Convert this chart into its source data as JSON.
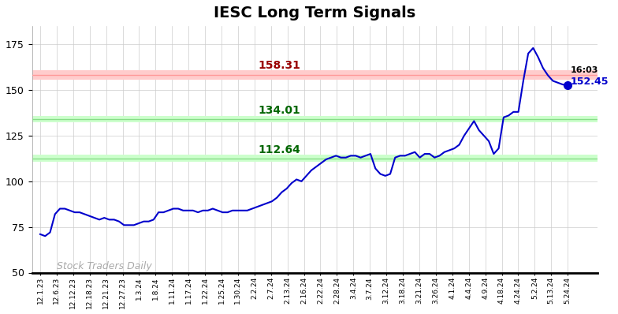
{
  "title": "IESC Long Term Signals",
  "title_fontsize": 14,
  "line_color": "#0000CC",
  "line_width": 1.5,
  "background_color": "#ffffff",
  "grid_color": "#cccccc",
  "hline_red": 158.31,
  "hline_red_fill_color": "#ffcccc",
  "hline_red_line_color": "#ff9999",
  "hline_green1": 134.01,
  "hline_green2": 112.64,
  "hline_green_fill_color": "#ccffcc",
  "hline_green_line_color": "#88dd88",
  "label_red_value": "158.31",
  "label_red_color": "#990000",
  "label_green1_value": "134.01",
  "label_green2_value": "112.64",
  "label_green_color": "#006600",
  "watermark": "Stock Traders Daily",
  "watermark_color": "#aaaaaa",
  "end_label_time": "16:03",
  "end_label_price": "152.45",
  "end_dot_color": "#0000CC",
  "ylim_min": 50,
  "ylim_max": 185,
  "yticks": [
    50,
    75,
    100,
    125,
    150,
    175
  ],
  "x_labels": [
    "12.1.23",
    "12.6.23",
    "12.12.23",
    "12.18.23",
    "12.21.23",
    "12.27.23",
    "1.3.24",
    "1.8.24",
    "1.11.24",
    "1.17.24",
    "1.22.24",
    "1.25.24",
    "1.30.24",
    "2.2.24",
    "2.7.24",
    "2.13.24",
    "2.16.24",
    "2.22.24",
    "2.28.24",
    "3.4.24",
    "3.7.24",
    "3.12.24",
    "3.18.24",
    "3.21.24",
    "3.26.24",
    "4.1.24",
    "4.4.24",
    "4.9.24",
    "4.18.24",
    "4.24.24",
    "5.2.24",
    "5.13.24",
    "5.24.24"
  ],
  "y_values": [
    71,
    70,
    72,
    82,
    85,
    85,
    84,
    83,
    83,
    82,
    81,
    80,
    79,
    80,
    79,
    79,
    78,
    76,
    76,
    76,
    77,
    78,
    78,
    79,
    83,
    83,
    84,
    85,
    85,
    84,
    84,
    84,
    83,
    84,
    84,
    85,
    84,
    83,
    83,
    84,
    84,
    84,
    84,
    85,
    86,
    87,
    88,
    89,
    91,
    94,
    96,
    99,
    101,
    100,
    103,
    106,
    108,
    110,
    112,
    113,
    114,
    113,
    113,
    114,
    114,
    113,
    114,
    115,
    107,
    104,
    103,
    104,
    113,
    114,
    114,
    115,
    116,
    113,
    115,
    115,
    113,
    114,
    116,
    117,
    118,
    120,
    125,
    129,
    133,
    128,
    125,
    122,
    115,
    118,
    135,
    136,
    138,
    138,
    155,
    170,
    173,
    168,
    162,
    158,
    155,
    154,
    153,
    152.45
  ]
}
